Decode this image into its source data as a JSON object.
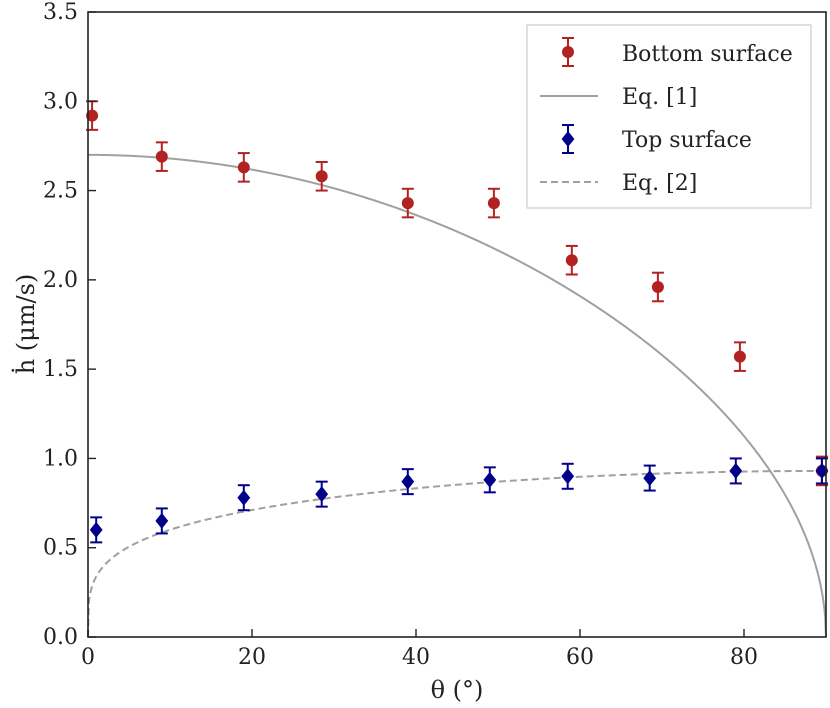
{
  "chart_data": {
    "type": "scatter",
    "title": "",
    "xlabel": "θ (°)",
    "ylabel": "ḣ (μm/s)",
    "xlim": [
      0,
      90
    ],
    "ylim": [
      0,
      3.5
    ],
    "xticks": [
      0,
      20,
      40,
      60,
      80
    ],
    "xtick_labels": [
      "0",
      "20",
      "40",
      "60",
      "80"
    ],
    "yticks": [
      0,
      0.5,
      1.0,
      1.5,
      2.0,
      2.5,
      3.0,
      3.5
    ],
    "ytick_labels": [
      "0.0",
      "0.5",
      "1.0",
      "1.5",
      "2.0",
      "2.5",
      "3.0",
      "3.5"
    ],
    "grid": false,
    "legend_position": "top-right",
    "series": [
      {
        "name": "Bottom surface",
        "kind": "errorbar",
        "marker": "circle",
        "color": "#b22222",
        "x": [
          0.5,
          9,
          19,
          28.5,
          39,
          49.5,
          59,
          69.5,
          79.5,
          89.5
        ],
        "y": [
          2.92,
          2.69,
          2.63,
          2.58,
          2.43,
          2.43,
          2.11,
          1.96,
          1.57,
          0.93
        ],
        "err": [
          0.08,
          0.08,
          0.08,
          0.08,
          0.08,
          0.08,
          0.08,
          0.08,
          0.08,
          0.08
        ]
      },
      {
        "name": "Eq. [1]",
        "kind": "line",
        "style": "solid",
        "color": "#a0a0a0",
        "formula": "2.70 * sqrt(cos(theta))"
      },
      {
        "name": "Top surface",
        "kind": "errorbar",
        "marker": "diamond",
        "color": "#00008b",
        "x": [
          1,
          9,
          19,
          28.5,
          39,
          49,
          58.5,
          68.5,
          79,
          89.5
        ],
        "y": [
          0.6,
          0.65,
          0.78,
          0.8,
          0.87,
          0.88,
          0.9,
          0.89,
          0.93,
          0.93
        ],
        "err": [
          0.07,
          0.07,
          0.07,
          0.07,
          0.07,
          0.07,
          0.07,
          0.07,
          0.07,
          0.07
        ]
      },
      {
        "name": "Eq. [2]",
        "kind": "line",
        "style": "dashed",
        "color": "#a0a0a0",
        "formula": "0.93 * sin(theta)^0.25"
      }
    ]
  }
}
